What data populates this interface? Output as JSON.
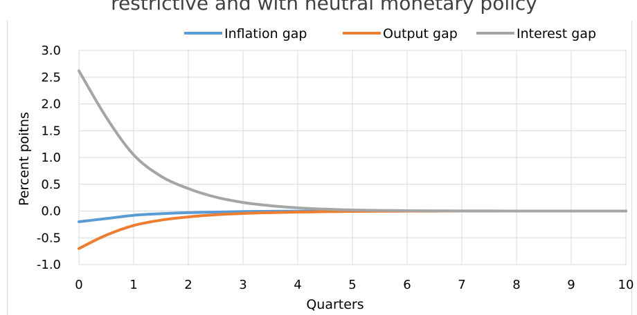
{
  "chart_data": {
    "type": "line",
    "title": "restrictive and with neutral monetary policy",
    "xlabel": "Quarters",
    "ylabel": "Percent poitns",
    "xlim": [
      0,
      10
    ],
    "ylim": [
      -1.0,
      3.0
    ],
    "x_ticks": [
      "0",
      "1",
      "2",
      "3",
      "4",
      "5",
      "6",
      "7",
      "8",
      "9",
      "10"
    ],
    "y_ticks": [
      "3.0",
      "2.5",
      "2.0",
      "1.5",
      "1.0",
      "0.5",
      "0.0",
      "-0.5",
      "-1.0"
    ],
    "grid": true,
    "legend_position": "top",
    "x": [
      0,
      0.5,
      1,
      1.5,
      2,
      2.5,
      3,
      3.5,
      4,
      4.5,
      5,
      5.5,
      6,
      6.5,
      7,
      7.5,
      8,
      8.5,
      9,
      9.5,
      10
    ],
    "series": [
      {
        "name": "Inflation gap",
        "color": "#5B9BD5",
        "values": [
          -0.2,
          -0.14,
          -0.08,
          -0.05,
          -0.03,
          -0.02,
          -0.01,
          -0.005,
          -0.003,
          -0.002,
          -0.001,
          0,
          0,
          0,
          0,
          0,
          0,
          0,
          0,
          0,
          0
        ]
      },
      {
        "name": "Output gap",
        "color": "#ED7D31",
        "values": [
          -0.7,
          -0.45,
          -0.27,
          -0.17,
          -0.11,
          -0.07,
          -0.045,
          -0.03,
          -0.02,
          -0.012,
          -0.007,
          -0.004,
          -0.002,
          -0.001,
          0,
          0,
          0,
          0,
          0,
          0,
          0
        ]
      },
      {
        "name": "Interest gap",
        "color": "#A5A5A5",
        "values": [
          2.62,
          1.75,
          1.05,
          0.65,
          0.42,
          0.26,
          0.16,
          0.1,
          0.06,
          0.035,
          0.02,
          0.012,
          0.007,
          0.004,
          0.002,
          0.001,
          0,
          0,
          0,
          0,
          0
        ]
      }
    ]
  }
}
